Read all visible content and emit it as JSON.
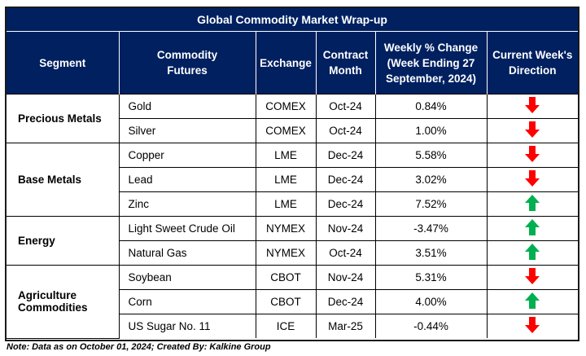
{
  "title": "Global Commodity Market Wrap-up",
  "headers": {
    "segment": "Segment",
    "futures_line1": "Commodity",
    "futures_line2": "Futures",
    "exchange": "Exchange",
    "month_line1": "Contract",
    "month_line2": "Month",
    "change_line1": "Weekly % Change",
    "change_line2": "(Week Ending 27",
    "change_line3": "September, 2024)",
    "direction_line1": "Current Week's",
    "direction_line2": "Direction"
  },
  "segments": {
    "precious": "Precious Metals",
    "base": "Base Metals",
    "energy": "Energy",
    "agri_line1": "Agriculture",
    "agri_line2": "Commodities"
  },
  "rows": [
    {
      "future": "Gold",
      "exchange": "COMEX",
      "month": "Oct-24",
      "change": "0.84%",
      "direction": "down"
    },
    {
      "future": "Silver",
      "exchange": "COMEX",
      "month": "Oct-24",
      "change": "1.00%",
      "direction": "down"
    },
    {
      "future": "Copper",
      "exchange": "LME",
      "month": "Dec-24",
      "change": "5.58%",
      "direction": "down"
    },
    {
      "future": "Lead",
      "exchange": "LME",
      "month": "Dec-24",
      "change": "3.02%",
      "direction": "down"
    },
    {
      "future": "Zinc",
      "exchange": "LME",
      "month": "Dec-24",
      "change": "7.52%",
      "direction": "up"
    },
    {
      "future": "Light Sweet Crude Oil",
      "exchange": "NYMEX",
      "month": "Nov-24",
      "change": "-3.47%",
      "direction": "up"
    },
    {
      "future": "Natural Gas",
      "exchange": "NYMEX",
      "month": "Oct-24",
      "change": "3.51%",
      "direction": "up"
    },
    {
      "future": "Soybean",
      "exchange": "CBOT",
      "month": "Nov-24",
      "change": "5.31%",
      "direction": "down"
    },
    {
      "future": "Corn",
      "exchange": "CBOT",
      "month": "Dec-24",
      "change": "4.00%",
      "direction": "up"
    },
    {
      "future": "US Sugar No. 11",
      "exchange": "ICE",
      "month": "Mar-25",
      "change": "-0.44%",
      "direction": "down"
    }
  ],
  "colors": {
    "header_bg": "#002060",
    "up": "#00b050",
    "down": "#ff0000"
  },
  "note": "Note: Data as on October 01, 2024; Created By: Kalkine Group"
}
